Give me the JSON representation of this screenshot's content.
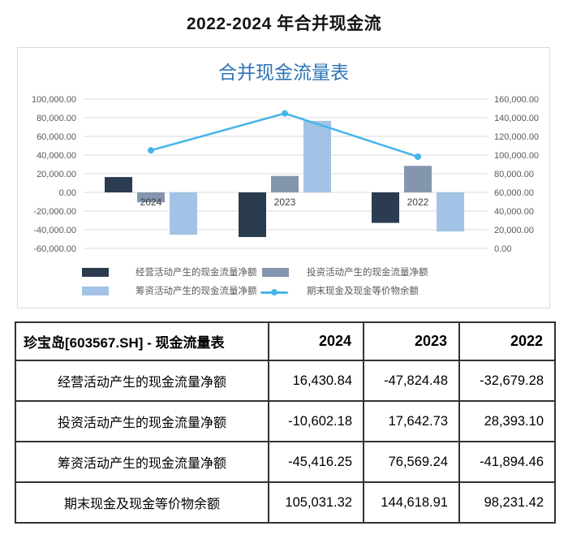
{
  "page_title": "2022-2024 年合并现金流",
  "chart_data": {
    "type": "combo",
    "title": "合并现金流量表",
    "categories": [
      "2024",
      "2023",
      "2022"
    ],
    "series": [
      {
        "name": "经营活动产生的现金流量净额",
        "type": "bar",
        "axis": "left",
        "color": "#2b3c51",
        "values": [
          16430.84,
          -47824.48,
          -32679.28
        ]
      },
      {
        "name": "投资活动产生的现金流量净额",
        "type": "bar",
        "axis": "left",
        "color": "#8496ae",
        "values": [
          -10602.18,
          17642.73,
          28393.1
        ]
      },
      {
        "name": "筹资活动产生的现金流量净额",
        "type": "bar",
        "axis": "left",
        "color": "#a2c3e5",
        "values": [
          -45416.25,
          76569.24,
          -41894.46
        ]
      },
      {
        "name": "期末现金及现金等价物余额",
        "type": "line",
        "axis": "right",
        "color": "#47b4e8",
        "values": [
          105031.32,
          144618.91,
          98231.42
        ]
      }
    ],
    "left_axis": {
      "min": -60000,
      "max": 100000,
      "step": 20000
    },
    "right_axis": {
      "min": 0,
      "max": 160000,
      "step": 20000
    },
    "gridlines": true,
    "legend_position": "bottom",
    "colors": {
      "chart_title": "#2e74b5",
      "gridline": "#d9d9d9",
      "axis_label": "#595959",
      "category_label": "#404040",
      "panel_border": "#d9d9d9",
      "table_border": "#333333"
    }
  },
  "table": {
    "header": [
      "珍宝岛[603567.SH] - 现金流量表",
      "2024",
      "2023",
      "2022"
    ],
    "rows": [
      {
        "label": "经营活动产生的现金流量净额",
        "values": [
          "16,430.84",
          "-47,824.48",
          "-32,679.28"
        ]
      },
      {
        "label": "投资活动产生的现金流量净额",
        "values": [
          "-10,602.18",
          "17,642.73",
          "28,393.10"
        ]
      },
      {
        "label": "筹资活动产生的现金流量净额",
        "values": [
          "-45,416.25",
          "76,569.24",
          "-41,894.46"
        ]
      },
      {
        "label": "期末现金及现金等价物余额",
        "values": [
          "105,031.32",
          "144,618.91",
          "98,231.42"
        ]
      }
    ]
  }
}
